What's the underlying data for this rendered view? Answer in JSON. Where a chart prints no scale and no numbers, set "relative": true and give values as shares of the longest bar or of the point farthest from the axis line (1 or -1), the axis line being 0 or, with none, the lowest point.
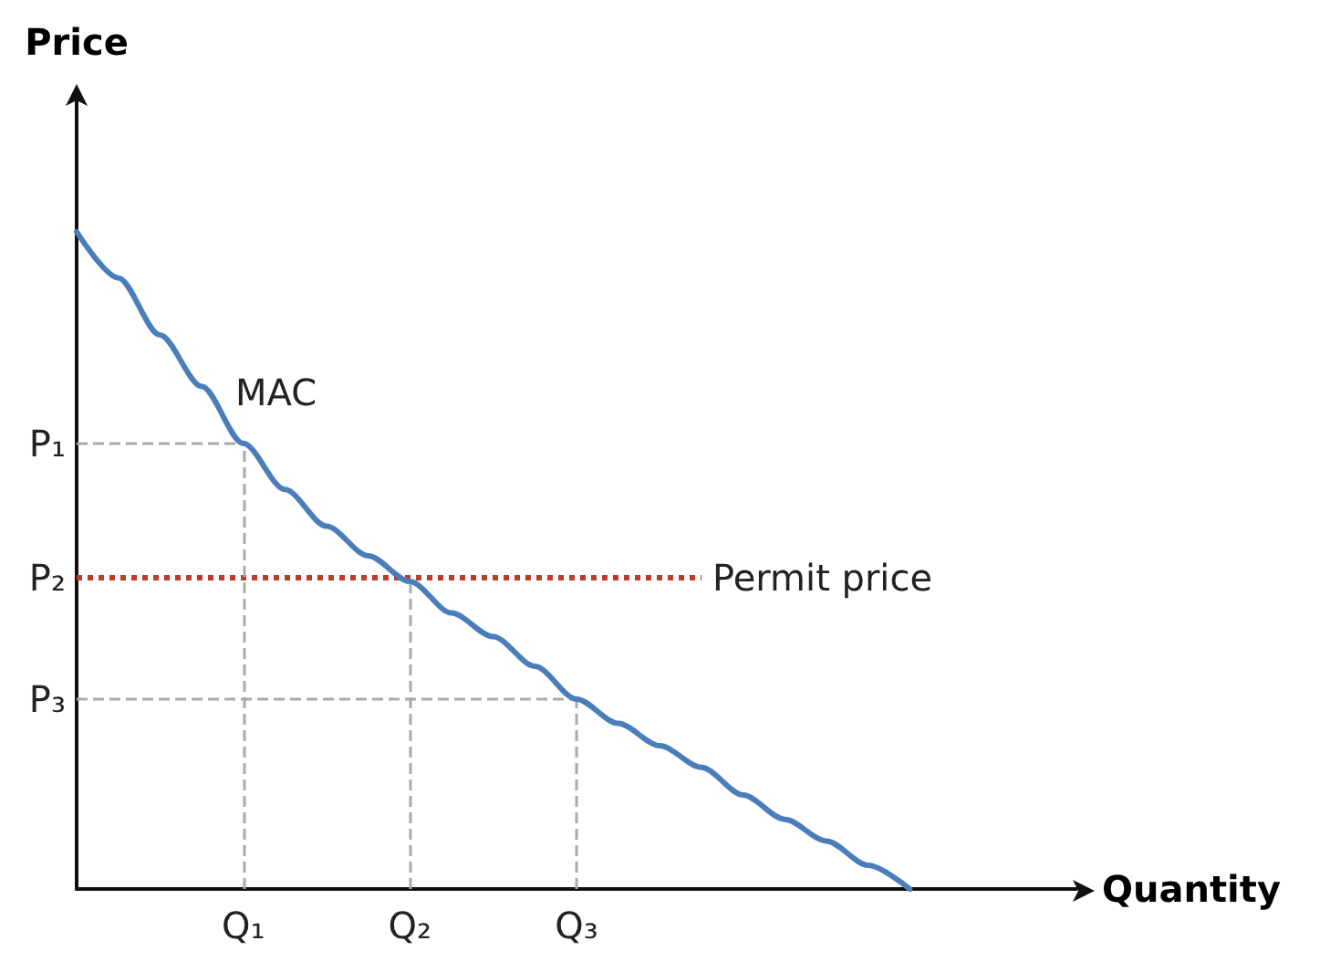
{
  "chart_data": {
    "type": "line",
    "relative": true,
    "xlabel": "Quantity",
    "ylabel": "Price",
    "categories": [
      null,
      null,
      null,
      null,
      "Q₁",
      null,
      null,
      null,
      "Q₂",
      null,
      null,
      null,
      "Q₃",
      null,
      null,
      null,
      null,
      null,
      null,
      null,
      null,
      null,
      null,
      null,
      null
    ],
    "series": [
      {
        "name": "MAC",
        "color": "#4a7ebb",
        "values": [
          1,
          0.93,
          0.843,
          0.765,
          0.678,
          0.608,
          0.552,
          0.507,
          0.468,
          0.42,
          0.384,
          0.339,
          0.289,
          0.252,
          0.218,
          0.185,
          0.143,
          0.106,
          0.073,
          0.036,
          0,
          null,
          null,
          null,
          null
        ]
      }
    ],
    "ref_lines": [
      {
        "axis": "y",
        "value": 0.678,
        "label": "P₁",
        "color": "#aaaaaa",
        "line_style": "dashed"
      },
      {
        "axis": "y",
        "value": 0.473,
        "label": "Permit price",
        "color": "#c0392b",
        "line_style": "dotted"
      },
      {
        "axis": "y",
        "value": 0.289,
        "label": "P₃",
        "color": "#aaaaaa",
        "line_style": "dashed"
      },
      {
        "axis": "x",
        "value": "Q₁",
        "color": "#aaaaaa",
        "line_style": "dashed"
      },
      {
        "axis": "x",
        "value": "Q₂",
        "color": "#aaaaaa",
        "line_style": "dashed"
      },
      {
        "axis": "x",
        "value": "Q₃",
        "color": "#aaaaaa",
        "line_style": "dashed"
      }
    ],
    "annotations": [
      "P₂"
    ],
    "grid": false,
    "legend": false,
    "marker": "none",
    "line_style": "solid"
  }
}
